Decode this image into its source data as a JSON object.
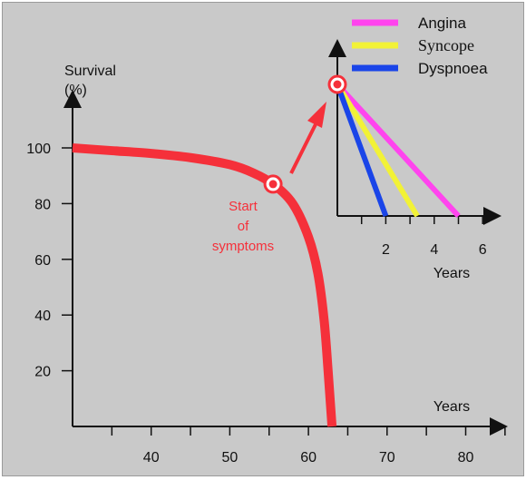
{
  "chart_data": [
    {
      "type": "line",
      "title": "",
      "ylabel": "Survival\n(%)",
      "xlabel": "Years",
      "ylim": [
        0,
        120
      ],
      "xlim": [
        30,
        85
      ],
      "x_tick_labels": [
        "40",
        "50",
        "60",
        "70",
        "80"
      ],
      "y_tick_labels": [
        "100",
        "80",
        "60",
        "40",
        "20"
      ],
      "grid": false,
      "series": [
        {
          "color": "#f5303a",
          "points": [
            [
              30,
              100
            ],
            [
              35,
              99
            ],
            [
              40,
              98
            ],
            [
              45,
              96.5
            ],
            [
              50,
              94
            ],
            [
              53,
              91
            ],
            [
              55.5,
              87
            ],
            [
              58,
              80
            ],
            [
              60,
              68
            ],
            [
              61.2,
              55
            ],
            [
              62,
              38
            ],
            [
              62.5,
              20
            ],
            [
              62.8,
              8
            ],
            [
              63,
              0
            ]
          ]
        }
      ],
      "annotation": {
        "text": [
          "Start",
          "of",
          "symptoms"
        ],
        "x": 55.5,
        "y": 87,
        "color": "#f5303a"
      }
    },
    {
      "type": "line",
      "title": "",
      "xlabel": "Years",
      "ylabel": "",
      "xlim": [
        0,
        6.5
      ],
      "ylim": [
        0,
        100
      ],
      "x_tick_labels": [
        "2",
        "4",
        "6"
      ],
      "legend": "top-right",
      "series": [
        {
          "name": "Angina",
          "color": "#ff44ee",
          "points": [
            [
              0,
              100
            ],
            [
              5,
              0
            ]
          ]
        },
        {
          "name": "Syncope",
          "color": "#f2f236",
          "points": [
            [
              0,
              100
            ],
            [
              3.3,
              0
            ]
          ]
        },
        {
          "name": "Dyspnoea",
          "color": "#1a45e8",
          "points": [
            [
              0,
              100
            ],
            [
              2,
              0
            ]
          ]
        }
      ]
    }
  ]
}
